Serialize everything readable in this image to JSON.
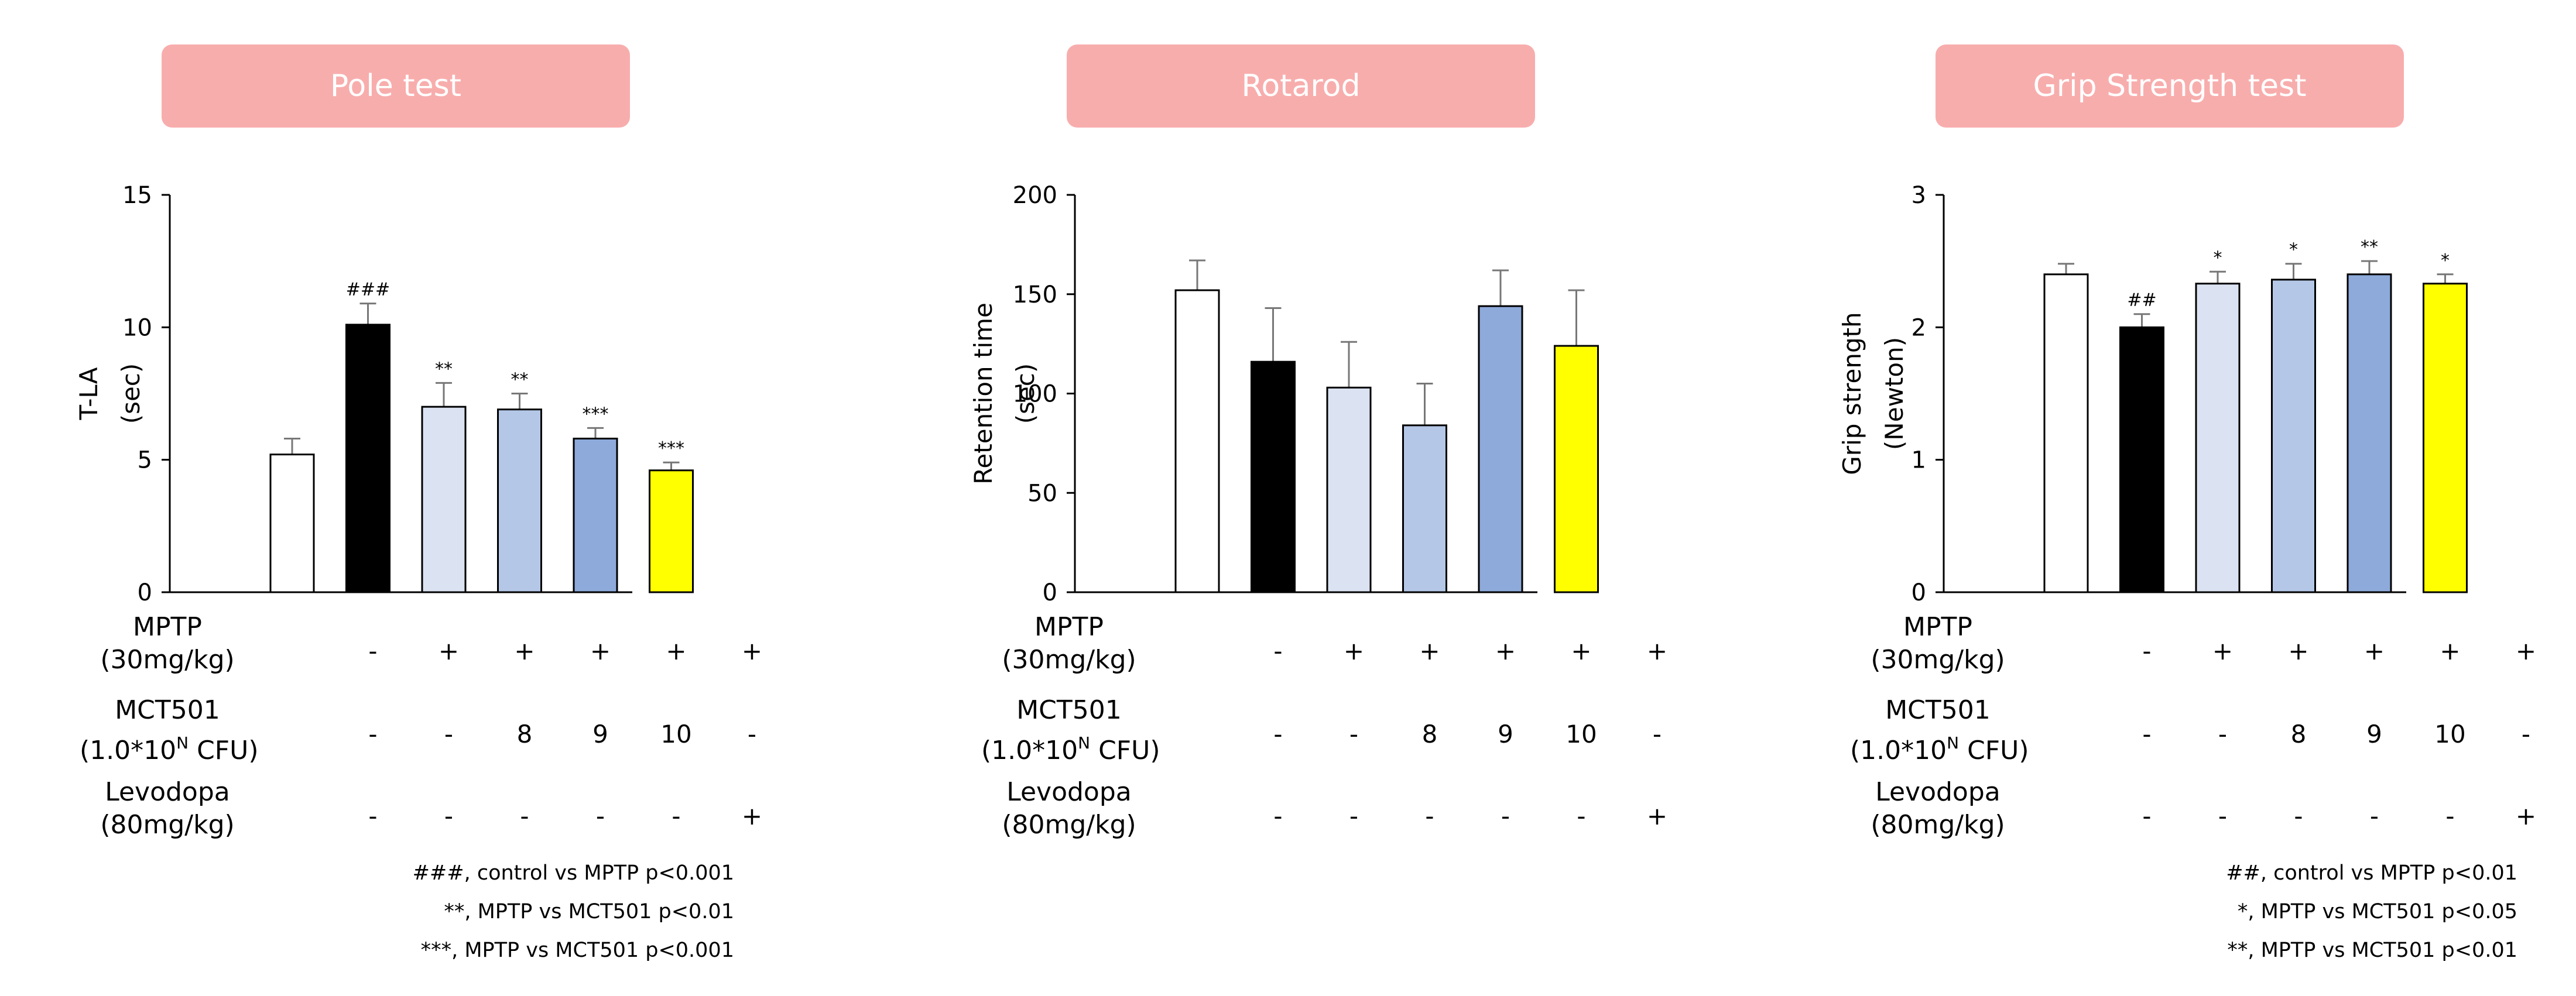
{
  "conditions": {
    "mptp_label": [
      "MPTP",
      "(30mg/kg)"
    ],
    "mct501_label": [
      "MCT501",
      "(1.0*10",
      "N",
      " CFU)"
    ],
    "levodopa_label": [
      "Levodopa",
      "(80mg/kg)"
    ],
    "mptp": [
      "-",
      "+",
      "+",
      "+",
      "+",
      "+"
    ],
    "mct501": [
      "-",
      "-",
      "8",
      "9",
      "10",
      "-"
    ],
    "levodopa": [
      "-",
      "-",
      "-",
      "-",
      "-",
      "+"
    ]
  },
  "colors": {
    "title_bg": "#f8adad",
    "bars": [
      "#ffffff",
      "#000000",
      "#dbe3f2",
      "#b4c7e7",
      "#8eaadb",
      "#ffff00"
    ]
  },
  "chart_data": [
    {
      "type": "bar",
      "title": "Pole test",
      "ylabel": [
        "T-LA",
        "(sec)"
      ],
      "ylim": [
        0,
        15
      ],
      "yticks": [
        "0",
        "5",
        "10",
        "15"
      ],
      "values": [
        5.2,
        10.1,
        7.0,
        6.9,
        5.8,
        4.6
      ],
      "errors": [
        0.6,
        0.8,
        0.9,
        0.6,
        0.4,
        0.3
      ],
      "annotations": [
        "",
        "###",
        "**",
        "**",
        "***",
        "***"
      ],
      "footnotes": [
        "###, control vs MPTP p<0.001",
        "**, MPTP vs MCT501 p<0.01",
        "***, MPTP vs MCT501 p<0.001"
      ]
    },
    {
      "type": "bar",
      "title": "Rotarod",
      "ylabel": [
        "Retention time",
        "(sec)"
      ],
      "ylim": [
        0,
        200
      ],
      "yticks": [
        "0",
        "50",
        "100",
        "150",
        "200"
      ],
      "values": [
        152,
        116,
        103,
        84,
        144,
        124
      ],
      "errors": [
        15,
        27,
        23,
        21,
        18,
        28
      ],
      "annotations": [
        "",
        "",
        "",
        "",
        "",
        ""
      ],
      "footnotes": []
    },
    {
      "type": "bar",
      "title": "Grip Strength test",
      "ylabel": [
        "Grip strength",
        "(Newton)"
      ],
      "ylim": [
        0,
        3
      ],
      "yticks": [
        "0",
        "1",
        "2",
        "3"
      ],
      "values": [
        2.4,
        2.0,
        2.33,
        2.36,
        2.4,
        2.33
      ],
      "errors": [
        0.08,
        0.1,
        0.09,
        0.12,
        0.1,
        0.07
      ],
      "annotations": [
        "",
        "##",
        "*",
        "*",
        "**",
        "*"
      ],
      "footnotes": [
        "##, control vs MPTP p<0.01",
        "*, MPTP vs MCT501 p<0.05",
        "**, MPTP vs MCT501 p<0.01"
      ]
    }
  ]
}
